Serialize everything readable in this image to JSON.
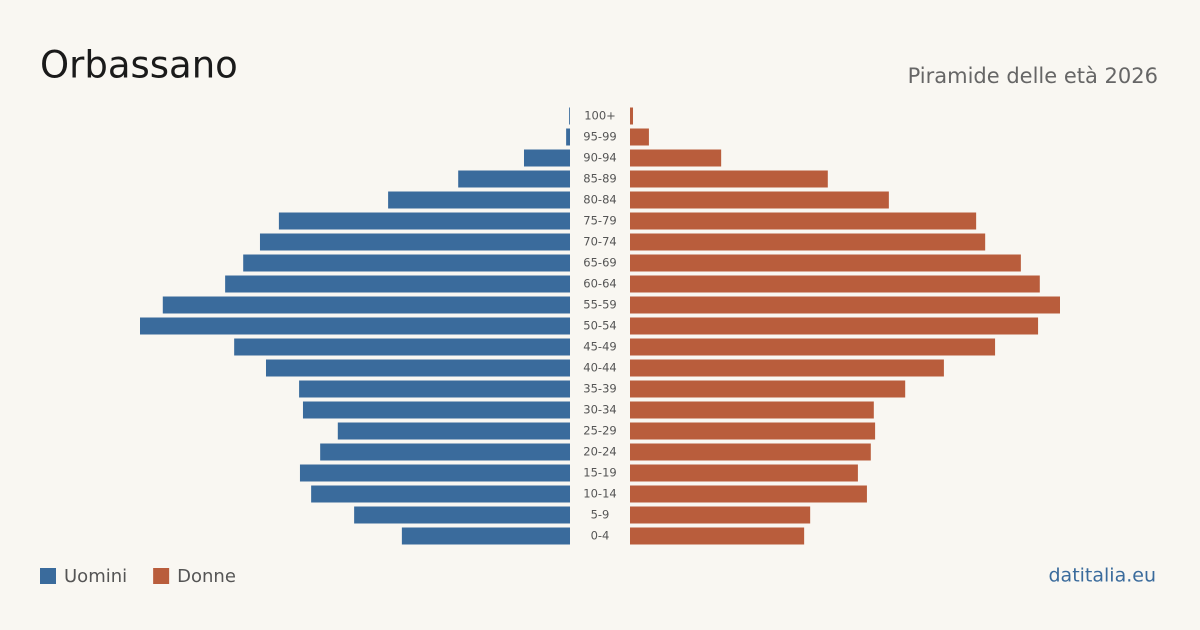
{
  "chart_data": {
    "type": "pyramid",
    "title": "Orbassano",
    "subtitle": "Piramide delle età 2026",
    "source": "datitalia.eu",
    "categories": [
      "100+",
      "95-99",
      "90-94",
      "85-89",
      "80-84",
      "75-79",
      "70-74",
      "65-69",
      "60-64",
      "55-59",
      "50-54",
      "45-49",
      "40-44",
      "35-39",
      "30-34",
      "25-29",
      "20-24",
      "15-19",
      "10-14",
      "5-9",
      "0-4"
    ],
    "series": [
      {
        "name": "Uomini",
        "color": "#3a6b9c",
        "values": [
          2,
          9,
          107,
          260,
          423,
          677,
          721,
          760,
          802,
          947,
          1000,
          781,
          707,
          630,
          621,
          540,
          581,
          628,
          602,
          502,
          391
        ]
      },
      {
        "name": "Donne",
        "color": "#b95d3c",
        "values": [
          7,
          44,
          212,
          460,
          602,
          805,
          826,
          909,
          953,
          1000,
          949,
          849,
          730,
          640,
          567,
          570,
          560,
          530,
          551,
          419,
          405
        ]
      }
    ]
  }
}
